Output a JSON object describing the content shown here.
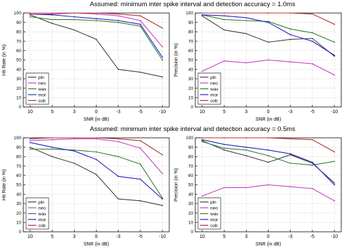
{
  "titles": {
    "top": "Assumed:  minimum inter spike interval and detection accuracy = 1.0ms",
    "bottom": "Assumed: minimum inter spike interval and detection accuracy = 0.5ms"
  },
  "colors": {
    "pln": "#404040",
    "neo": "#c040c0",
    "wav": "#308030",
    "mor": "#2020c0",
    "cob": "#b03030"
  },
  "chart_data": [
    {
      "type": "line",
      "title": "Assumed:  minimum inter spike interval and detection accuracy = 1.0ms",
      "categories": [
        "10",
        "5",
        "3",
        "0",
        "-3",
        "-5",
        "-10"
      ],
      "xlabel": "SNR (in dB)",
      "ylabel": "Hit Rate (in %)",
      "ylim": [
        0,
        100
      ],
      "yticks": [
        "0",
        "10",
        "20",
        "30",
        "40",
        "50",
        "60",
        "70",
        "80",
        "90",
        "100"
      ],
      "grid": true,
      "legend": "bottom-left",
      "series": [
        {
          "name": "pln",
          "values": [
            98,
            89,
            82,
            72,
            40,
            37,
            32
          ]
        },
        {
          "name": "neo",
          "values": [
            100,
            100,
            100,
            99,
            97,
            92,
            64
          ]
        },
        {
          "name": "wav",
          "values": [
            96,
            93,
            93,
            92,
            90,
            86,
            50
          ]
        },
        {
          "name": "mor",
          "values": [
            99,
            98,
            96,
            94,
            92,
            88,
            53
          ]
        },
        {
          "name": "cob",
          "values": [
            99,
            99,
            100,
            100,
            99,
            97,
            84
          ]
        }
      ]
    },
    {
      "type": "line",
      "title": "",
      "categories": [
        "10",
        "5",
        "3",
        "0",
        "-3",
        "-5",
        "-10"
      ],
      "xlabel": "SNR (in dB)",
      "ylabel": "Precision (in %)",
      "ylim": [
        0,
        100
      ],
      "yticks": [
        "0",
        "10",
        "20",
        "30",
        "40",
        "50",
        "60",
        "70",
        "80",
        "90",
        "100"
      ],
      "grid": true,
      "legend": "bottom-left",
      "series": [
        {
          "name": "pln",
          "values": [
            97,
            82,
            78,
            69,
            72,
            73,
            54
          ]
        },
        {
          "name": "neo",
          "values": [
            38,
            49,
            47,
            50,
            48,
            46,
            34
          ]
        },
        {
          "name": "wav",
          "values": [
            98,
            93,
            92,
            91,
            83,
            79,
            69
          ]
        },
        {
          "name": "mor",
          "values": [
            98,
            97,
            95,
            90,
            77,
            70,
            55
          ]
        },
        {
          "name": "cob",
          "values": [
            100,
            100,
            100,
            100,
            100,
            99,
            88
          ]
        }
      ]
    },
    {
      "type": "line",
      "title": "Assumed: minimum inter spike interval and detection accuracy = 0.5ms",
      "categories": [
        "10",
        "5",
        "3",
        "0",
        "-3",
        "-5",
        "-10"
      ],
      "xlabel": "SNR (in dB)",
      "ylabel": "Hit Rate (in %)",
      "ylim": [
        0,
        100
      ],
      "yticks": [
        "0",
        "10",
        "20",
        "30",
        "40",
        "50",
        "60",
        "70",
        "80",
        "90",
        "100"
      ],
      "grid": true,
      "legend": "bottom-left",
      "series": [
        {
          "name": "pln",
          "values": [
            90,
            80,
            73,
            61,
            35,
            33,
            28
          ]
        },
        {
          "name": "neo",
          "values": [
            97,
            98,
            99,
            99,
            96,
            89,
            62
          ]
        },
        {
          "name": "wav",
          "values": [
            88,
            88,
            87,
            85,
            80,
            72,
            36
          ]
        },
        {
          "name": "mor",
          "values": [
            95,
            90,
            86,
            77,
            59,
            56,
            35
          ]
        },
        {
          "name": "cob",
          "values": [
            99,
            100,
            100,
            100,
            99,
            97,
            82
          ]
        }
      ]
    },
    {
      "type": "line",
      "title": "",
      "categories": [
        "10",
        "5",
        "3",
        "0",
        "-3",
        "-5",
        "-10"
      ],
      "xlabel": "SNR (in dB)",
      "ylabel": "Precision (in %)",
      "ylim": [
        0,
        100
      ],
      "yticks": [
        "0",
        "10",
        "20",
        "30",
        "40",
        "50",
        "60",
        "70",
        "80",
        "90",
        "100"
      ],
      "grid": true,
      "legend": "bottom-left",
      "series": [
        {
          "name": "pln",
          "values": [
            97,
            87,
            81,
            74,
            82,
            73,
            52
          ]
        },
        {
          "name": "neo",
          "values": [
            38,
            47,
            47,
            50,
            48,
            46,
            33
          ]
        },
        {
          "name": "wav",
          "values": [
            96,
            89,
            87,
            81,
            73,
            71,
            75
          ]
        },
        {
          "name": "mor",
          "values": [
            98,
            93,
            90,
            87,
            83,
            74,
            50
          ]
        },
        {
          "name": "cob",
          "values": [
            100,
            100,
            100,
            100,
            99,
            98,
            85
          ]
        }
      ]
    }
  ]
}
